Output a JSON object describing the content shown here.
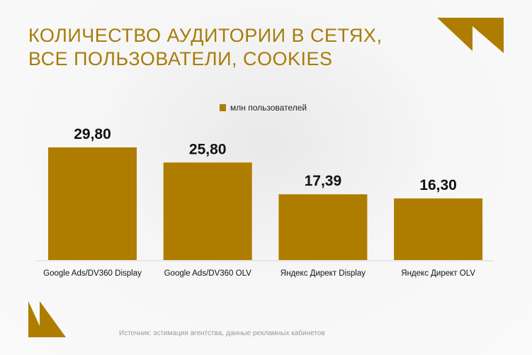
{
  "title_lines": [
    "КОЛИЧЕСТВО АУДИТОРИИ В СЕТЯХ,",
    "ВСЕ ПОЛЬЗОВАТЕЛИ, COOKIES"
  ],
  "source": "Источник: эстимация агентства, данные рекламных кабинетов",
  "colors": {
    "accent": "#ae7d00"
  },
  "chart_data": {
    "type": "bar",
    "categories": [
      "Google Ads/DV360 Display",
      "Google Ads/DV360 OLV",
      "Яндекс Директ Display",
      "Яндекс Директ OLV"
    ],
    "series": [
      {
        "name": "млн пользователей",
        "values": [
          29.8,
          25.8,
          17.39,
          16.3
        ]
      }
    ],
    "data_labels": [
      "29,80",
      "25,80",
      "17,39",
      "16,30"
    ],
    "legend": "top-center",
    "grid": false,
    "ylim": [
      0,
      30
    ]
  }
}
